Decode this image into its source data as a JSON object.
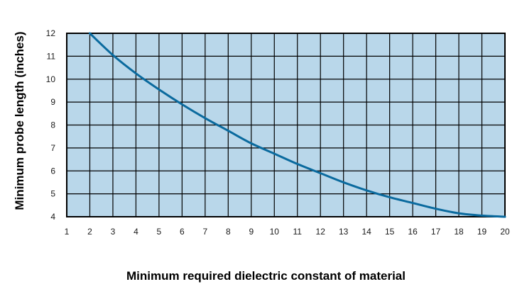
{
  "chart_data": {
    "type": "line",
    "xlabel": "Minimum required dielectric constant of material",
    "ylabel": "Minimum probe length (inches)",
    "xlim": [
      1,
      20
    ],
    "ylim": [
      4,
      12
    ],
    "x_ticks": [
      1,
      2,
      3,
      4,
      5,
      6,
      7,
      8,
      9,
      10,
      11,
      12,
      13,
      14,
      15,
      16,
      17,
      18,
      19,
      20
    ],
    "y_ticks": [
      4,
      5,
      6,
      7,
      8,
      9,
      10,
      11,
      12
    ],
    "grid": true,
    "colors": {
      "plot_background": "#b9d7ea",
      "grid": "#000000",
      "line": "#0a6a9e"
    },
    "series": [
      {
        "x": [
          2,
          3,
          4,
          5,
          6,
          7,
          8,
          9,
          10,
          11,
          12,
          13,
          14,
          15,
          16,
          17,
          18,
          19,
          20
        ],
        "y": [
          12,
          11.05,
          10.25,
          9.55,
          8.9,
          8.3,
          7.75,
          7.2,
          6.75,
          6.3,
          5.9,
          5.5,
          5.15,
          4.85,
          4.6,
          4.35,
          4.15,
          4.05,
          4.0
        ]
      }
    ]
  }
}
